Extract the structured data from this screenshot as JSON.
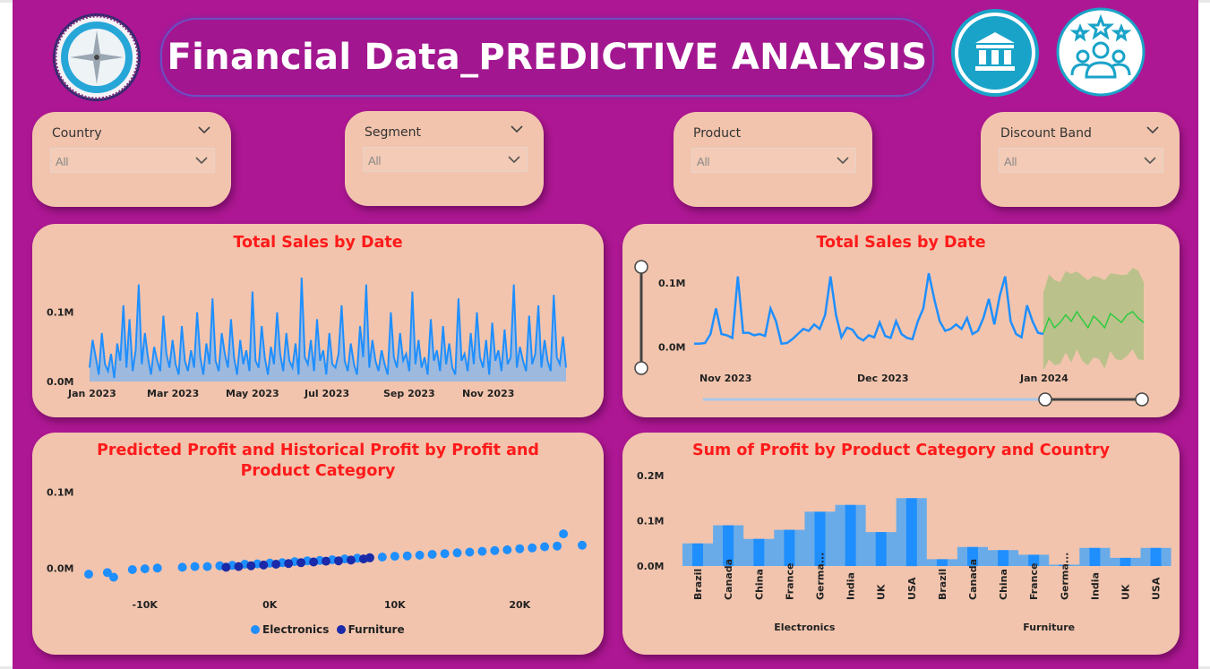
{
  "header": {
    "title": "Financial Data_PREDICTIVE ANALYSIS",
    "logo_icon": "compass-icon",
    "icons": [
      "bank-icon",
      "team-rating-icon"
    ]
  },
  "colors": {
    "background": "#ad1793",
    "card": "#f2c4ad",
    "title_red": "#ff1a1a",
    "series_blue": "#1f8fff",
    "dark_blue": "#1a2aa8",
    "forecast_green": "#2ecc40"
  },
  "filters": [
    {
      "label": "Country",
      "value": "All"
    },
    {
      "label": "Segment",
      "value": "All"
    },
    {
      "label": "Product",
      "value": "All"
    },
    {
      "label": "Discount Band",
      "value": "All"
    }
  ],
  "sales_chart": {
    "title": "Total Sales by Date",
    "y_ticks": [
      "0.1M",
      "0.0M"
    ],
    "x_ticks": [
      "Jan 2023",
      "Mar 2023",
      "May 2023",
      "Jul 2023",
      "Sep 2023",
      "Nov 2023"
    ]
  },
  "forecast_chart": {
    "title": "Total Sales by Date",
    "y_ticks": [
      "0.1M",
      "0.0M"
    ],
    "x_ticks": [
      "Nov 2023",
      "Dec 2023",
      "Jan 2024"
    ]
  },
  "scatter_chart": {
    "title_line1": "Predicted Profit and Historical Profit by Profit and",
    "title_line2": "Product Category",
    "y_ticks": [
      "0.1M",
      "0.0M"
    ],
    "x_ticks": [
      "-10K",
      "0K",
      "10K",
      "20K"
    ],
    "legend": [
      {
        "name": "Electronics",
        "color": "#1f8fff"
      },
      {
        "name": "Furniture",
        "color": "#1a2aa8"
      }
    ]
  },
  "profit_chart": {
    "title": "Sum of Profit by Product Category and Country",
    "y_ticks": [
      "0.2M",
      "0.1M",
      "0.0M"
    ],
    "groups": [
      "Electronics",
      "Furniture"
    ]
  },
  "chart_data": [
    {
      "type": "area",
      "title": "Total Sales by Date",
      "x_range": [
        "2023-01-01",
        "2023-12-31"
      ],
      "ylim": [
        0,
        150000
      ],
      "series": [
        {
          "values": [
            20000,
            60000,
            35000,
            10000,
            70000,
            25000,
            15000,
            40000,
            5000,
            55000,
            30000,
            110000,
            20000,
            90000,
            15000,
            45000,
            140000,
            25000,
            70000,
            35000,
            10000,
            50000,
            30000,
            15000,
            95000,
            40000,
            20000,
            60000,
            25000,
            10000,
            80000,
            30000,
            15000,
            45000,
            20000,
            100000,
            35000,
            10000,
            55000,
            25000,
            120000,
            30000,
            15000,
            70000,
            40000,
            20000,
            90000,
            35000,
            10000,
            60000,
            25000,
            45000,
            15000,
            130000,
            30000,
            20000,
            80000,
            35000,
            10000,
            50000,
            25000,
            100000,
            40000,
            15000,
            70000,
            30000,
            20000,
            55000,
            10000,
            150000,
            35000,
            25000,
            60000,
            15000,
            90000,
            30000,
            45000,
            10000,
            70000,
            25000,
            20000,
            40000,
            110000,
            30000,
            15000,
            55000,
            25000,
            10000,
            80000,
            35000,
            140000,
            20000,
            60000,
            30000,
            15000,
            45000,
            25000,
            10000,
            100000,
            35000,
            20000,
            70000,
            30000,
            40000,
            15000,
            130000,
            25000,
            60000,
            20000,
            35000,
            10000,
            90000,
            30000,
            45000,
            15000,
            80000,
            25000,
            55000,
            20000,
            10000,
            120000,
            30000,
            40000,
            15000,
            70000,
            25000,
            100000,
            35000,
            20000,
            60000,
            10000,
            85000,
            30000,
            45000,
            15000,
            75000,
            25000,
            35000,
            140000,
            20000,
            50000,
            30000,
            15000,
            95000,
            25000,
            40000,
            110000,
            20000,
            60000,
            30000,
            15000,
            125000,
            35000,
            25000,
            65000,
            20000
          ]
        }
      ]
    },
    {
      "type": "line",
      "title": "Total Sales by Date",
      "x_range": [
        "2023-10-25",
        "2024-01-20"
      ],
      "ylim": [
        -15000,
        125000
      ],
      "series": [
        {
          "values": [
            5000,
            5000,
            6000,
            20000,
            60000,
            20000,
            18000,
            14000,
            110000,
            22000,
            22000,
            18000,
            20000,
            17000,
            60000,
            40000,
            5000,
            6000,
            12000,
            20000,
            28000,
            25000,
            35000,
            28000,
            50000,
            110000,
            50000,
            15000,
            30000,
            27000,
            15000,
            10000,
            18000,
            15000,
            38000,
            17000,
            14000,
            40000,
            20000,
            14000,
            12000,
            40000,
            60000,
            115000,
            75000,
            40000,
            25000,
            28000,
            35000,
            28000,
            45000,
            20000,
            25000,
            45000,
            75000,
            35000,
            80000,
            110000,
            40000,
            20000,
            15000,
            65000,
            40000,
            22000,
            20000
          ]
        },
        {
          "name": "forecast",
          "values": [
            22000,
            45000,
            30000,
            38000,
            50000,
            40000,
            55000,
            42000,
            30000,
            48000,
            40000,
            30000,
            52000,
            45000,
            38000,
            50000,
            55000,
            45000,
            38000
          ]
        }
      ]
    },
    {
      "type": "scatter",
      "title": "Predicted Profit and Historical Profit by Profit and Product Category",
      "xlim": [
        -15000,
        25000
      ],
      "ylim": [
        -15000,
        110000
      ],
      "series": [
        {
          "name": "Electronics",
          "points": [
            [
              -14500,
              -8000
            ],
            [
              -13000,
              -6000
            ],
            [
              -12500,
              -12000
            ],
            [
              -11000,
              -2000
            ],
            [
              -10000,
              -1000
            ],
            [
              -9000,
              0
            ],
            [
              -7000,
              1000
            ],
            [
              -6000,
              2000
            ],
            [
              -5000,
              2000
            ],
            [
              -4000,
              3000
            ],
            [
              -3000,
              3500
            ],
            [
              -2000,
              5000
            ],
            [
              -1000,
              5500
            ],
            [
              0,
              6500
            ],
            [
              1000,
              7000
            ],
            [
              2000,
              8500
            ],
            [
              3000,
              9500
            ],
            [
              4000,
              10000
            ],
            [
              5000,
              11000
            ],
            [
              6000,
              12000
            ],
            [
              7000,
              13000
            ],
            [
              8000,
              13500
            ],
            [
              9000,
              14500
            ],
            [
              10000,
              15500
            ],
            [
              11000,
              16000
            ],
            [
              12000,
              17000
            ],
            [
              13000,
              18000
            ],
            [
              14000,
              19000
            ],
            [
              15000,
              20000
            ],
            [
              16000,
              21000
            ],
            [
              17000,
              22000
            ],
            [
              18000,
              23000
            ],
            [
              19000,
              24000
            ],
            [
              20000,
              25500
            ],
            [
              21000,
              26500
            ],
            [
              22000,
              28000
            ],
            [
              23000,
              29000
            ],
            [
              23500,
              45000
            ],
            [
              25000,
              30000
            ]
          ]
        },
        {
          "name": "Furniture",
          "points": [
            [
              -3500,
              1000
            ],
            [
              -2500,
              2000
            ],
            [
              -1500,
              3000
            ],
            [
              -500,
              4000
            ],
            [
              500,
              5000
            ],
            [
              1500,
              6000
            ],
            [
              2500,
              7000
            ],
            [
              3500,
              8000
            ],
            [
              4500,
              9000
            ],
            [
              5500,
              9500
            ],
            [
              6500,
              10500
            ],
            [
              7500,
              12000
            ],
            [
              8000,
              13500
            ]
          ]
        }
      ]
    },
    {
      "type": "bar",
      "title": "Sum of Profit by Product Category and Country",
      "ylim": [
        0,
        200000
      ],
      "categories": [
        "Brazil",
        "Canada",
        "China",
        "France",
        "Germany",
        "India",
        "UK",
        "USA"
      ],
      "series": [
        {
          "name": "Electronics",
          "values": [
            50000,
            90000,
            60000,
            80000,
            120000,
            135000,
            75000,
            150000
          ]
        },
        {
          "name": "Furniture",
          "values": [
            15000,
            42000,
            35000,
            25000,
            3000,
            40000,
            18000,
            40000
          ]
        }
      ]
    }
  ]
}
